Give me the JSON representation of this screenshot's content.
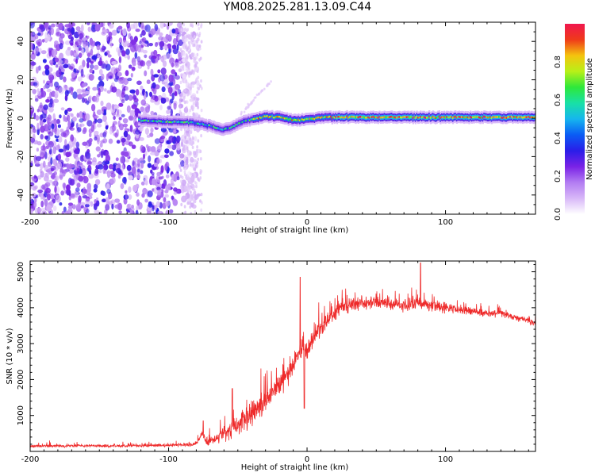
{
  "figure_title": "YM08.2025.281.13.09.C44",
  "colors": {
    "snr_line": "#ee2b2b",
    "colormap": [
      "#ffffff",
      "#d8b8f8",
      "#b27cf2",
      "#7a22e6",
      "#2a1de8",
      "#0a5cf5",
      "#16b6ee",
      "#18e0a6",
      "#2ee83a",
      "#b8f018",
      "#f4c40e",
      "#ef3a1a",
      "#f0174e"
    ]
  },
  "chart_data": [
    {
      "type": "heatmap",
      "title": "",
      "xlabel": "Height of straight line (km)",
      "ylabel": "Frequency (Hz)",
      "xlim": [
        -200,
        165
      ],
      "ylim": [
        -50,
        50
      ],
      "xticks": [
        "-200",
        "-100",
        "0",
        "100"
      ],
      "yticks": [
        "-40",
        "-20",
        "0",
        "20",
        "40"
      ],
      "noise_region_x": [
        -200,
        -78
      ],
      "signal_ridge": {
        "x": [
          -122,
          -110,
          -100,
          -90,
          -80,
          -70,
          -62,
          -55,
          -48,
          -40,
          -30,
          -20,
          -10,
          0,
          10,
          20,
          30,
          50,
          75,
          100,
          125,
          150,
          165
        ],
        "frequency": [
          -1,
          -1.5,
          -2,
          -2,
          -2.5,
          -4,
          -6,
          -5,
          -2,
          -0.5,
          1,
          0.5,
          -1,
          -0.5,
          0.5,
          0.5,
          0.5,
          0.5,
          0.5,
          0.5,
          0.5,
          0.5,
          0.5
        ]
      },
      "colorbar": {
        "label": "Normalized spectral amplitude",
        "range": [
          0,
          1
        ],
        "ticks": [
          "0.0",
          "0.2",
          "0.4",
          "0.6",
          "0.8"
        ]
      }
    },
    {
      "type": "line",
      "title": "",
      "xlabel": "Height of straight line (km)",
      "ylabel": "SNR (10 * v/v)",
      "xlim": [
        -200,
        165
      ],
      "ylim": [
        0,
        5300
      ],
      "xticks": [
        "-200",
        "-100",
        "0",
        "100"
      ],
      "yticks": [
        "1000",
        "2000",
        "3000",
        "4000",
        "5000"
      ],
      "series": [
        {
          "name": "SNR",
          "x": [
            -200,
            -180,
            -160,
            -140,
            -120,
            -100,
            -85,
            -80,
            -76,
            -72,
            -68,
            -62,
            -56,
            -50,
            -44,
            -38,
            -32,
            -26,
            -20,
            -14,
            -10,
            -6,
            -3,
            -1,
            2,
            6,
            10,
            15,
            20,
            25,
            30,
            40,
            50,
            60,
            70,
            80,
            90,
            100,
            110,
            120,
            130,
            140,
            150,
            160,
            165
          ],
          "values": [
            150,
            150,
            160,
            150,
            160,
            170,
            190,
            220,
            500,
            260,
            320,
            450,
            580,
            700,
            900,
            1150,
            1350,
            1600,
            1850,
            2150,
            2450,
            2700,
            3000,
            2750,
            3000,
            3250,
            3450,
            3650,
            3850,
            4050,
            4100,
            4150,
            4150,
            4100,
            4050,
            4150,
            4050,
            4000,
            3950,
            3900,
            3850,
            3850,
            3750,
            3650,
            3550
          ],
          "spread": [
            60,
            60,
            60,
            60,
            60,
            70,
            80,
            90,
            150,
            150,
            200,
            280,
            380,
            420,
            450,
            500,
            500,
            480,
            450,
            420,
            400,
            400,
            400,
            400,
            400,
            380,
            360,
            340,
            320,
            300,
            300,
            280,
            260,
            260,
            250,
            240,
            220,
            200,
            180,
            160,
            150,
            140,
            130,
            120,
            120
          ],
          "spikes": [
            [
              -75,
              850
            ],
            [
              -54,
              1750
            ],
            [
              -5,
              4850
            ],
            [
              -2,
              1200
            ],
            [
              82,
              5250
            ]
          ]
        }
      ]
    }
  ]
}
